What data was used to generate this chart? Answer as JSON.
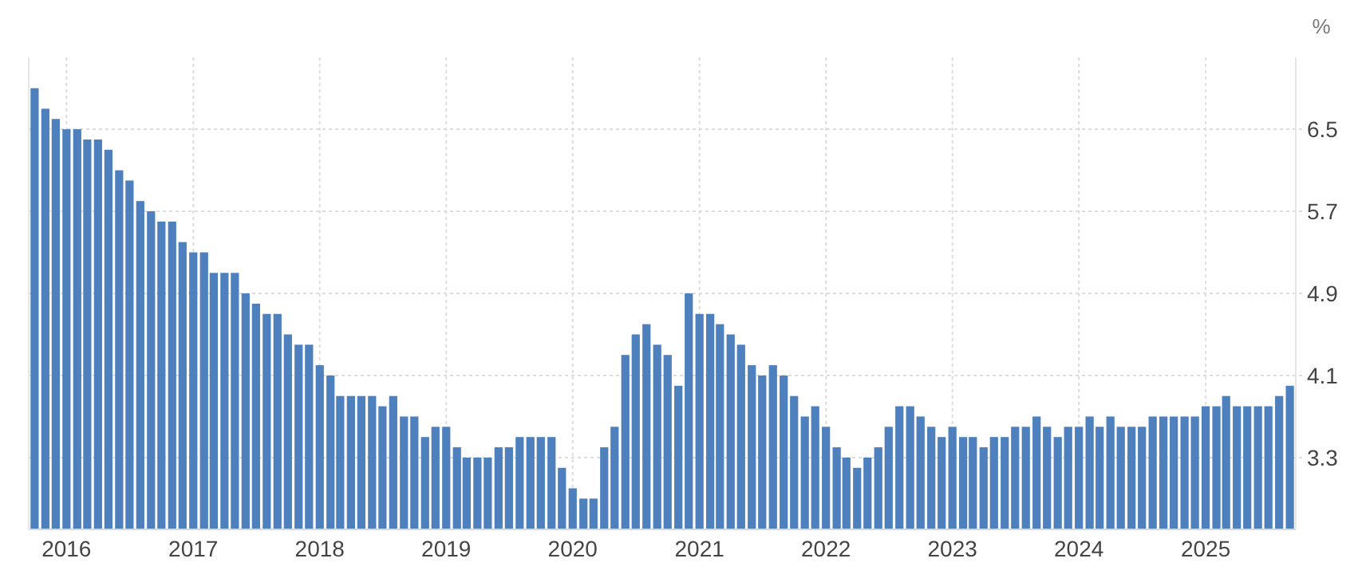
{
  "chart_data": {
    "type": "bar",
    "ylabel": "%",
    "x": [
      "2015-10",
      "2015-11",
      "2015-12",
      "2016-01",
      "2016-02",
      "2016-03",
      "2016-04",
      "2016-05",
      "2016-06",
      "2016-07",
      "2016-08",
      "2016-09",
      "2016-10",
      "2016-11",
      "2016-12",
      "2017-01",
      "2017-02",
      "2017-03",
      "2017-04",
      "2017-05",
      "2017-06",
      "2017-07",
      "2017-08",
      "2017-09",
      "2017-10",
      "2017-11",
      "2017-12",
      "2018-01",
      "2018-02",
      "2018-03",
      "2018-04",
      "2018-05",
      "2018-06",
      "2018-07",
      "2018-08",
      "2018-09",
      "2018-10",
      "2018-11",
      "2018-12",
      "2019-01",
      "2019-02",
      "2019-03",
      "2019-04",
      "2019-05",
      "2019-06",
      "2019-07",
      "2019-08",
      "2019-09",
      "2019-10",
      "2019-11",
      "2019-12",
      "2020-01",
      "2020-02",
      "2020-03",
      "2020-04",
      "2020-05",
      "2020-06",
      "2020-07",
      "2020-08",
      "2020-09",
      "2020-10",
      "2020-11",
      "2020-12",
      "2021-01",
      "2021-02",
      "2021-03",
      "2021-04",
      "2021-05",
      "2021-06",
      "2021-07",
      "2021-08",
      "2021-09",
      "2021-10",
      "2021-11",
      "2021-12",
      "2022-01",
      "2022-02",
      "2022-03",
      "2022-04",
      "2022-05",
      "2022-06",
      "2022-07",
      "2022-08",
      "2022-09",
      "2022-10",
      "2022-11",
      "2022-12",
      "2023-01",
      "2023-02",
      "2023-03",
      "2023-04",
      "2023-05",
      "2023-06",
      "2023-07",
      "2023-08",
      "2023-09",
      "2023-10",
      "2023-11",
      "2023-12",
      "2024-01",
      "2024-02",
      "2024-03",
      "2024-04",
      "2024-05",
      "2024-06",
      "2024-07",
      "2024-08",
      "2024-09",
      "2024-10",
      "2024-11",
      "2024-12",
      "2025-01",
      "2025-02",
      "2025-03",
      "2025-04",
      "2025-05",
      "2025-06",
      "2025-07",
      "2025-08",
      "2025-09"
    ],
    "values": [
      6.9,
      6.7,
      6.6,
      6.5,
      6.5,
      6.4,
      6.4,
      6.3,
      6.1,
      6.0,
      5.8,
      5.7,
      5.6,
      5.6,
      5.4,
      5.3,
      5.3,
      5.1,
      5.1,
      5.1,
      4.9,
      4.8,
      4.7,
      4.7,
      4.5,
      4.4,
      4.4,
      4.2,
      4.1,
      3.9,
      3.9,
      3.9,
      3.9,
      3.8,
      3.9,
      3.7,
      3.7,
      3.5,
      3.6,
      3.6,
      3.4,
      3.3,
      3.3,
      3.3,
      3.4,
      3.4,
      3.5,
      3.5,
      3.5,
      3.5,
      3.2,
      3.0,
      2.9,
      2.9,
      3.4,
      3.6,
      4.3,
      4.5,
      4.6,
      4.4,
      4.3,
      4.0,
      4.9,
      4.7,
      4.7,
      4.6,
      4.5,
      4.4,
      4.2,
      4.1,
      4.2,
      4.1,
      3.9,
      3.7,
      3.8,
      3.6,
      3.4,
      3.3,
      3.2,
      3.3,
      3.4,
      3.6,
      3.8,
      3.8,
      3.7,
      3.6,
      3.5,
      3.6,
      3.5,
      3.5,
      3.4,
      3.5,
      3.5,
      3.6,
      3.6,
      3.7,
      3.6,
      3.5,
      3.6,
      3.6,
      3.7,
      3.6,
      3.7,
      3.6,
      3.6,
      3.6,
      3.7,
      3.7,
      3.7,
      3.7,
      3.7,
      3.8,
      3.8,
      3.9,
      3.8,
      3.8,
      3.8,
      3.8,
      3.9,
      4.0
    ],
    "color": "#4e80be",
    "xlim": [
      "2015-09-14",
      "2025-09-18"
    ],
    "xticks": [
      "2016",
      "2017",
      "2018",
      "2019",
      "2020",
      "2021",
      "2022",
      "2023",
      "2024",
      "2025"
    ],
    "ylim": [
      2.6,
      7.2
    ],
    "yticks": [
      3.3,
      4.1,
      4.9,
      5.7,
      6.5
    ],
    "grid": true
  }
}
